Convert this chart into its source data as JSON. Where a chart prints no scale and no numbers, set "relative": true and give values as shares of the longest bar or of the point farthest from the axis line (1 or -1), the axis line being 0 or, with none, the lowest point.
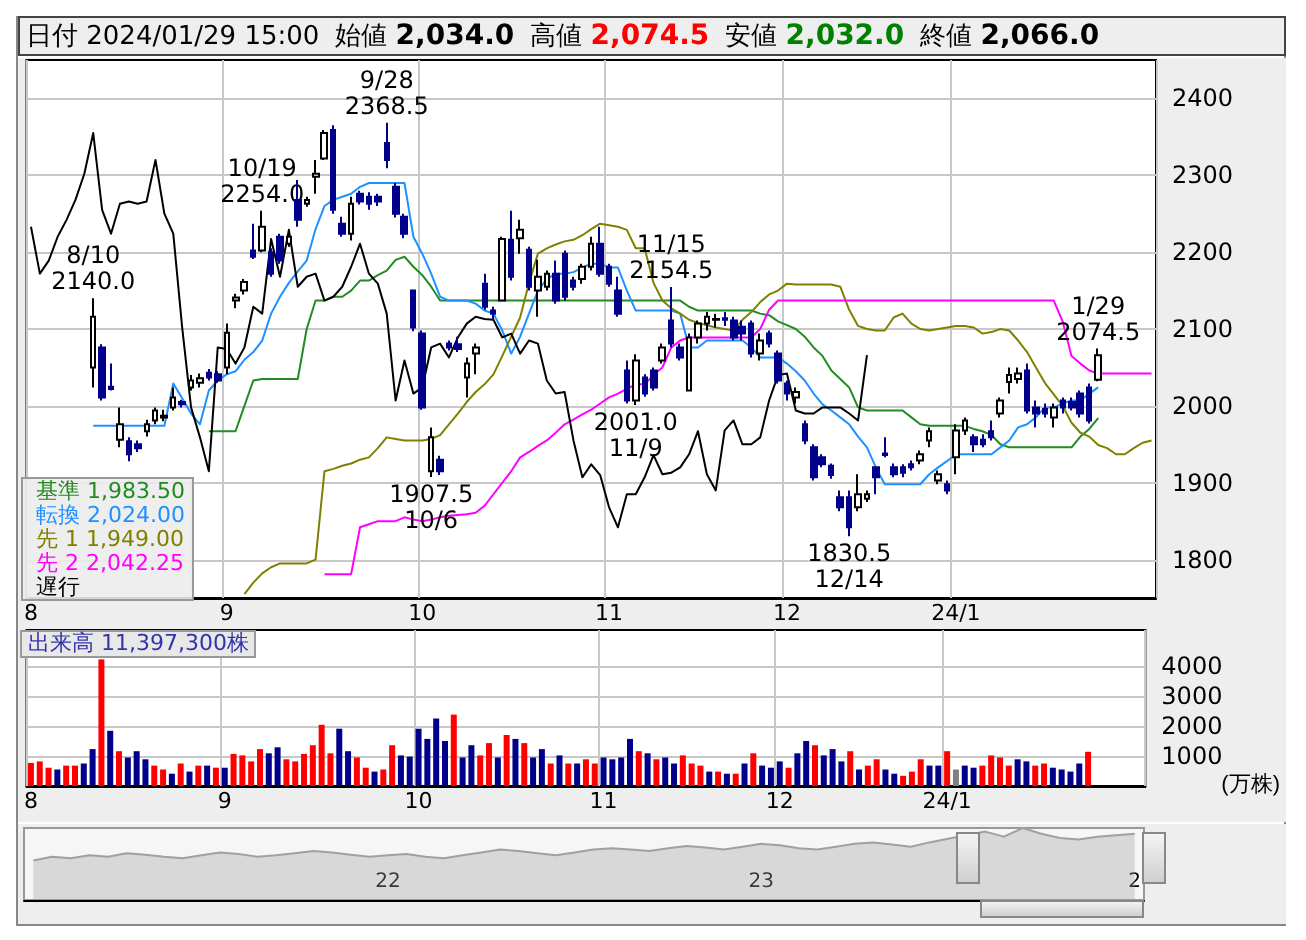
{
  "chart_data": [
    {
      "type": "candlestick",
      "title": "日付 2024/01/29 15:00",
      "annotations": [
        "始値 2,034.0",
        "高値 2,074.5",
        "安値 2,032.0",
        "終値 2,066.0",
        {
          "text": "8/10\n2140.0",
          "y": 2140
        },
        {
          "text": "9/28\n2368.5",
          "y": 2368.5
        },
        {
          "text": "1907.5\n10/6",
          "y": 1907.5
        },
        {
          "text": "10/19\n2254.0",
          "y": 2254
        },
        {
          "text": "2001.0\n11/9",
          "y": 2001
        },
        {
          "text": "11/15\n2154.5",
          "y": 2154.5
        },
        {
          "text": "1830.5\n12/14",
          "y": 1830.5
        },
        {
          "text": "1/29\n2074.5",
          "y": 2074.5
        }
      ],
      "categories": [
        "8",
        null,
        null,
        null,
        null,
        null,
        null,
        null,
        null,
        null,
        null,
        null,
        null,
        null,
        null,
        null,
        null,
        null,
        null,
        null,
        null,
        null,
        "9",
        null,
        null,
        null,
        null,
        null,
        null,
        null,
        null,
        null,
        null,
        null,
        null,
        null,
        null,
        null,
        null,
        null,
        null,
        null,
        null,
        null,
        "10",
        null,
        null,
        null,
        null,
        null,
        null,
        null,
        null,
        null,
        null,
        null,
        null,
        null,
        null,
        null,
        null,
        null,
        null,
        null,
        null,
        "11",
        null,
        null,
        null,
        null,
        null,
        null,
        null,
        null,
        null,
        null,
        null,
        null,
        null,
        null,
        null,
        null,
        null,
        null,
        null,
        "12",
        null,
        null,
        null,
        null,
        null,
        null,
        null,
        null,
        null,
        null,
        null,
        null,
        null,
        null,
        null,
        null,
        null,
        null,
        "24/1",
        null,
        null,
        null,
        null,
        null,
        null,
        null,
        null,
        null,
        null,
        null,
        null,
        null,
        null,
        null,
        null,
        null,
        null,
        null,
        null,
        null,
        null
      ],
      "ohlc": [
        null,
        null,
        null,
        null,
        null,
        null,
        null,
        [
          2050,
          2140,
          2024,
          2116
        ],
        [
          2076,
          2080,
          2007,
          2011
        ],
        [
          2025,
          2055,
          2020,
          2022
        ],
        [
          1956,
          1998,
          1946,
          1976
        ],
        [
          1954,
          1959,
          1928,
          1937
        ],
        [
          1950,
          1955,
          1940,
          1945
        ],
        [
          1967,
          1982,
          1960,
          1976
        ],
        [
          1981,
          1998,
          1976,
          1994
        ],
        [
          1985,
          1995,
          1980,
          1987
        ],
        [
          1998,
          2024,
          1994,
          2011
        ],
        [
          2005,
          2008,
          1998,
          2002
        ],
        [
          2024,
          2040,
          2020,
          2033
        ],
        [
          2030,
          2042,
          2024,
          2036
        ],
        [
          2043,
          2048,
          2033,
          2037
        ],
        [
          2041,
          2045,
          2030,
          2033
        ],
        [
          2050,
          2107,
          2041,
          2095
        ],
        [
          2137,
          2146,
          2127,
          2141
        ],
        [
          2150,
          2165,
          2145,
          2161
        ],
        [
          2202,
          2237,
          2191,
          2194
        ],
        [
          2202,
          2254,
          2200,
          2233
        ],
        [
          2200,
          2205,
          2168,
          2172
        ],
        [
          2220,
          2224,
          2185,
          2189
        ],
        [
          2211,
          2229,
          2207,
          2220
        ],
        [
          2268,
          2294,
          2233,
          2242
        ],
        [
          2263,
          2272,
          2259,
          2268
        ],
        [
          2298,
          2320,
          2276,
          2302
        ],
        [
          2322,
          2359,
          2320,
          2355
        ],
        [
          2359,
          2365,
          2250,
          2255
        ],
        [
          2237,
          2246,
          2220,
          2224
        ],
        [
          2224,
          2272,
          2215,
          2263
        ],
        [
          2276,
          2280,
          2262,
          2266
        ],
        [
          2272,
          2278,
          2255,
          2263
        ],
        [
          2272,
          2276,
          2260,
          2266
        ],
        [
          2342,
          2368.5,
          2309,
          2320
        ],
        [
          2285,
          2290,
          2245,
          2250
        ],
        [
          2246,
          2250,
          2218,
          2224
        ],
        [
          2150,
          2150,
          2097,
          2102
        ],
        [
          2094,
          2098,
          1995,
          1998
        ],
        [
          1915,
          1972,
          1907.5,
          1959
        ],
        [
          1930,
          1935,
          1910,
          1915
        ],
        [
          2081,
          2085,
          2072,
          2076
        ],
        [
          2080,
          2090,
          2070,
          2074
        ],
        [
          2037,
          2063,
          2011,
          2055
        ],
        [
          2068,
          2081,
          2041,
          2076
        ],
        [
          2159,
          2172,
          2125,
          2129
        ],
        [
          2124,
          2129,
          2111,
          2120
        ],
        [
          2137,
          2220,
          2137,
          2217
        ],
        [
          2216,
          2254,
          2163,
          2168
        ],
        [
          2218,
          2242,
          2198,
          2229
        ],
        [
          2203,
          2207,
          2150,
          2155
        ],
        [
          2150,
          2190,
          2116,
          2168
        ],
        [
          2155,
          2176,
          2150,
          2172
        ],
        [
          2172,
          2189,
          2133,
          2137
        ],
        [
          2198,
          2202,
          2137,
          2142
        ],
        [
          2163,
          2168,
          2150,
          2155
        ],
        [
          2165,
          2185,
          2159,
          2181
        ],
        [
          2181,
          2220,
          2176,
          2211
        ],
        [
          2211,
          2233,
          2168,
          2172
        ],
        [
          2181,
          2185,
          2155,
          2159
        ],
        [
          2150,
          2168,
          2116,
          2120
        ],
        [
          2046,
          2059,
          2003,
          2007
        ],
        [
          2007,
          2067,
          2001,
          2059
        ],
        [
          2037,
          2041,
          2012,
          2016
        ],
        [
          2046,
          2050,
          2020,
          2024
        ],
        [
          2059,
          2081,
          2055,
          2076
        ],
        [
          2111,
          2154.5,
          2076,
          2081
        ],
        [
          2076,
          2081,
          2059,
          2063
        ],
        [
          2020,
          2094,
          2020,
          2089
        ],
        [
          2089,
          2111,
          2081,
          2107
        ],
        [
          2107,
          2122,
          2098,
          2116
        ],
        [
          2112,
          2120,
          2102,
          2113
        ],
        [
          2114,
          2122,
          2104,
          2112
        ],
        [
          2111,
          2116,
          2085,
          2089
        ],
        [
          2103,
          2111,
          2085,
          2094
        ],
        [
          2107,
          2111,
          2063,
          2068
        ],
        [
          2068,
          2094,
          2059,
          2085
        ],
        [
          2094,
          2098,
          2076,
          2081
        ],
        [
          2068,
          2072,
          2029,
          2033
        ],
        [
          2029,
          2033,
          2007,
          2016
        ],
        [
          2011,
          2024,
          2003,
          2018
        ],
        [
          1976,
          1981,
          1950,
          1955
        ],
        [
          1946,
          1950,
          1903,
          1907
        ],
        [
          1933,
          1937,
          1920,
          1924
        ],
        [
          1922,
          1925,
          1905,
          1910
        ],
        [
          1881,
          1890,
          1863,
          1868
        ],
        [
          1881,
          1890,
          1830.5,
          1842
        ],
        [
          1868,
          1911,
          1863,
          1885
        ],
        [
          1879,
          1890,
          1875,
          1885
        ],
        [
          1920,
          1920,
          1885,
          1907
        ],
        [
          1938,
          1959,
          1933,
          1936
        ],
        [
          1920,
          1925,
          1907,
          1911
        ],
        [
          1920,
          1924,
          1907,
          1913
        ],
        [
          1924,
          1929,
          1916,
          1920
        ],
        [
          1929,
          1942,
          1924,
          1937
        ],
        [
          1955,
          1972,
          1946,
          1967
        ],
        [
          1903,
          1916,
          1898,
          1911
        ],
        [
          1898,
          1903,
          1885,
          1890
        ],
        [
          1933,
          1976,
          1911,
          1968
        ],
        [
          1968,
          1985,
          1962,
          1981
        ],
        [
          1959,
          1963,
          1940,
          1950
        ],
        [
          1956,
          1963,
          1946,
          1950
        ],
        [
          1967,
          1981,
          1955,
          1959
        ],
        [
          1990,
          2011,
          1985,
          2007
        ],
        [
          2031,
          2050,
          2016,
          2040
        ],
        [
          2035,
          2050,
          2029,
          2042
        ],
        [
          2046,
          2055,
          1990,
          1994
        ],
        [
          1998,
          2007,
          1972,
          1990
        ],
        [
          1996,
          2003,
          1985,
          1990
        ],
        [
          1985,
          2003,
          1972,
          1998
        ],
        [
          2007,
          2011,
          1990,
          1998
        ],
        [
          2005,
          2011,
          1994,
          1998
        ],
        [
          2016,
          2020,
          1985,
          1990
        ],
        [
          2024,
          2029,
          1977,
          1981
        ],
        [
          2034,
          2074.5,
          2032,
          2066
        ],
        null,
        null,
        null,
        null,
        null,
        null
      ],
      "series": [
        {
          "type": "line",
          "name": "基準 1,983.50",
          "color": "#228b22",
          "values": [
            null,
            null,
            null,
            null,
            null,
            null,
            null,
            null,
            null,
            null,
            null,
            null,
            null,
            null,
            null,
            null,
            null,
            null,
            null,
            null,
            1967,
            1967,
            1967,
            1967,
            2000,
            2033,
            2035,
            2035,
            2035,
            2035,
            2035,
            2100,
            2137,
            2137,
            2142,
            2142,
            2150,
            2163,
            2163,
            2170,
            2176,
            2190,
            2194,
            2181,
            2170,
            2155,
            2137,
            2137,
            2137,
            2137,
            2137,
            2137,
            2137,
            2137,
            2137,
            2137,
            2137,
            2137,
            2137,
            2137,
            2137,
            2137,
            2137,
            2137,
            2137,
            2137,
            2137,
            2137,
            2137,
            2137,
            2137,
            2137,
            2137,
            2137,
            2129,
            2124,
            2124,
            2124,
            2124,
            2124,
            2124,
            2124,
            2120,
            2118,
            2110,
            2105,
            2100,
            2090,
            2076,
            2065,
            2046,
            2035,
            2024,
            1998,
            1994,
            1994,
            1994,
            1994,
            1994,
            1985,
            1976,
            1974,
            1974,
            1974,
            1974,
            1974,
            1970,
            1967,
            1962,
            1950,
            1946,
            1946,
            1946,
            1946,
            1946,
            1946,
            1946,
            1946,
            1960,
            1970,
            1984,
            null,
            null,
            null,
            null,
            null,
            null
          ]
        },
        {
          "type": "line",
          "name": "転換 2,024.00",
          "color": "#1e90ff",
          "values": [
            null,
            null,
            null,
            null,
            null,
            null,
            null,
            1974,
            1974,
            1974,
            1974,
            1974,
            1974,
            1974,
            1974,
            1974,
            2029,
            2010,
            1990,
            1976,
            2020,
            2033,
            2041,
            2045,
            2060,
            2070,
            2085,
            2120,
            2142,
            2160,
            2175,
            2189,
            2230,
            2260,
            2268,
            2272,
            2276,
            2285,
            2290,
            2290,
            2290,
            2290,
            2290,
            2220,
            2198,
            2172,
            2142,
            2137,
            2137,
            2137,
            2133,
            2124,
            2120,
            2098,
            2068,
            2090,
            2120,
            2150,
            2165,
            2172,
            2172,
            2174,
            2180,
            2185,
            2185,
            2180,
            2180,
            2150,
            2124,
            2124,
            2124,
            2124,
            2124,
            2120,
            2076,
            2076,
            2085,
            2085,
            2085,
            2085,
            2085,
            2076,
            2063,
            2063,
            2063,
            2055,
            2045,
            2033,
            2016,
            2002,
            1994,
            1985,
            1976,
            1960,
            1946,
            1920,
            1898,
            1898,
            1898,
            1898,
            1898,
            1911,
            1920,
            1928,
            1937,
            1937,
            1937,
            1937,
            1937,
            1946,
            1955,
            1972,
            1976,
            1985,
            1998,
            1998,
            2003,
            2007,
            2007,
            2016,
            2024,
            null,
            null,
            null,
            null,
            null,
            null
          ]
        },
        {
          "type": "line",
          "name": "先 1 1,949.00",
          "color": "#808000",
          "values": [
            null,
            null,
            null,
            null,
            null,
            null,
            null,
            null,
            null,
            null,
            null,
            null,
            null,
            null,
            null,
            null,
            null,
            null,
            null,
            null,
            null,
            null,
            null,
            null,
            1755,
            1770,
            1782,
            1790,
            1795,
            1795,
            1795,
            1795,
            1800,
            1915,
            1918,
            1922,
            1925,
            1930,
            1933,
            1945,
            1959,
            1957,
            1955,
            1955,
            1955,
            1957,
            1962,
            1976,
            1990,
            2005,
            2018,
            2028,
            2041,
            2065,
            2090,
            2115,
            2160,
            2198,
            2205,
            2210,
            2214,
            2216,
            2222,
            2230,
            2237,
            2235,
            2233,
            2229,
            2205,
            2205,
            2160,
            2137,
            2127,
            2120,
            2112,
            2108,
            2105,
            2102,
            2100,
            2098,
            2112,
            2122,
            2135,
            2145,
            2150,
            2159,
            2158,
            2158,
            2158,
            2158,
            2158,
            2155,
            2125,
            2104,
            2100,
            2098,
            2098,
            2115,
            2120,
            2107,
            2100,
            2098,
            2100,
            2102,
            2104,
            2104,
            2102,
            2094,
            2096,
            2100,
            2098,
            2085,
            2070,
            2050,
            2030,
            2015,
            2000,
            1978,
            1965,
            1960,
            1949,
            1945,
            1937,
            1937,
            1945,
            1952,
            1955
          ]
        },
        {
          "type": "line",
          "name": "先 2 2,042.25",
          "color": "#ff00ff",
          "values": [
            null,
            null,
            null,
            null,
            null,
            null,
            null,
            null,
            null,
            null,
            null,
            null,
            null,
            null,
            null,
            null,
            null,
            null,
            null,
            null,
            null,
            null,
            null,
            null,
            null,
            null,
            null,
            null,
            null,
            null,
            null,
            null,
            null,
            1781,
            1781,
            1781,
            1781,
            1842,
            1846,
            1850,
            1850,
            1850,
            1855,
            1852,
            1850,
            1852,
            1855,
            1857,
            1858,
            1859,
            1861,
            1870,
            1885,
            1900,
            1915,
            1933,
            1940,
            1948,
            1955,
            1965,
            1976,
            1982,
            1989,
            1995,
            2003,
            2011,
            2016,
            2022,
            2028,
            2028,
            2040,
            2050,
            2076,
            2085,
            2089,
            2089,
            2089,
            2089,
            2089,
            2089,
            2089,
            2089,
            2100,
            2125,
            2137,
            2137,
            2137,
            2137,
            2137,
            2137,
            2137,
            2137,
            2137,
            2137,
            2137,
            2137,
            2137,
            2137,
            2137,
            2137,
            2137,
            2137,
            2137,
            2137,
            2137,
            2137,
            2137,
            2137,
            2137,
            2137,
            2137,
            2137,
            2137,
            2137,
            2137,
            2137,
            2110,
            2065,
            2055,
            2046,
            2042,
            2042,
            2042,
            2042,
            2042,
            2042,
            2042
          ]
        },
        {
          "type": "line",
          "name": "遅行",
          "color": "#000000",
          "values": [
            2233,
            2172,
            2189,
            2220,
            2242,
            2268,
            2302,
            2355,
            2255,
            2224,
            2263,
            2266,
            2263,
            2266,
            2320,
            2250,
            2224,
            2102,
            1998,
            1959,
            1915,
            2076,
            2074,
            2055,
            2076,
            2129,
            2120,
            2217,
            2168,
            2229,
            2155,
            2168,
            2172,
            2137,
            2142,
            2155,
            2181,
            2211,
            2172,
            2159,
            2120,
            2007,
            2059,
            2016,
            2024,
            2076,
            2081,
            2063,
            2089,
            2107,
            2116,
            2113,
            2112,
            2089,
            2094,
            2068,
            2085,
            2081,
            2033,
            2016,
            2018,
            1955,
            1907,
            1924,
            1910,
            1868,
            1842,
            1885,
            1885,
            1907,
            1936,
            1911,
            1913,
            1920,
            1937,
            1967,
            1911,
            1890,
            1968,
            1981,
            1950,
            1950,
            1959,
            2007,
            2040,
            2042,
            1994,
            1990,
            1990,
            1998,
            1998,
            1998,
            1990,
            1981,
            2066,
            null,
            null,
            null,
            null,
            null,
            null,
            null,
            null,
            null,
            null,
            null,
            null,
            null,
            null,
            null,
            null,
            null,
            null,
            null,
            null,
            null,
            null,
            null,
            null,
            null,
            null,
            null,
            null,
            null,
            null,
            null,
            null
          ]
        }
      ],
      "ylim": [
        1750,
        2450
      ],
      "yticks": [
        1800,
        1900,
        2000,
        2100,
        2200,
        2300,
        2400
      ],
      "grid": true,
      "legend": "bottom left"
    },
    {
      "type": "bar",
      "annotations": [
        "出来高 11,397,300株"
      ],
      "ylabel": "(万株)",
      "categories": [
        "8",
        null,
        null,
        null,
        null,
        null,
        null,
        null,
        null,
        null,
        null,
        null,
        null,
        null,
        null,
        null,
        null,
        null,
        null,
        null,
        null,
        null,
        "9",
        null,
        null,
        null,
        null,
        null,
        null,
        null,
        null,
        null,
        null,
        null,
        null,
        null,
        null,
        null,
        null,
        null,
        null,
        null,
        null,
        null,
        "10",
        null,
        null,
        null,
        null,
        null,
        null,
        null,
        null,
        null,
        null,
        null,
        null,
        null,
        null,
        null,
        null,
        null,
        null,
        null,
        null,
        "11",
        null,
        null,
        null,
        null,
        null,
        null,
        null,
        null,
        null,
        null,
        null,
        null,
        null,
        null,
        null,
        null,
        null,
        null,
        null,
        "12",
        null,
        null,
        null,
        null,
        null,
        null,
        null,
        null,
        null,
        null,
        null,
        null,
        null,
        null,
        null,
        null,
        null,
        null,
        "24/1",
        null,
        null,
        null,
        null,
        null,
        null,
        null,
        null,
        null,
        null,
        null,
        null,
        null,
        null,
        null,
        null,
        null,
        null,
        null,
        null,
        null,
        null
      ],
      "values": [
        770,
        820,
        610,
        550,
        680,
        680,
        750,
        1230,
        4220,
        1840,
        1160,
        950,
        1160,
        890,
        680,
        550,
        410,
        750,
        480,
        680,
        680,
        610,
        610,
        1070,
        1020,
        820,
        1230,
        1090,
        1290,
        890,
        820,
        1070,
        1360,
        2040,
        1090,
        1910,
        1160,
        950,
        610,
        480,
        550,
        1360,
        1020,
        980,
        1910,
        1570,
        2250,
        1500,
        2380,
        950,
        1360,
        1020,
        1430,
        950,
        1700,
        1570,
        1430,
        950,
        1230,
        750,
        1020,
        750,
        750,
        890,
        750,
        950,
        890,
        950,
        1570,
        1160,
        1090,
        890,
        950,
        750,
        1020,
        750,
        680,
        480,
        480,
        410,
        410,
        750,
        1090,
        680,
        610,
        820,
        610,
        1090,
        1500,
        1360,
        1020,
        1230,
        820,
        1160,
        550,
        680,
        890,
        550,
        410,
        340,
        480,
        890,
        680,
        680,
        1160,
        550,
        680,
        610,
        680,
        1020,
        950,
        680,
        890,
        820,
        680,
        750,
        610,
        550,
        480,
        750,
        1140,
        null,
        null,
        null,
        null,
        null,
        null
      ],
      "colors": [
        "#ff0000",
        "#ff0000",
        "#ff0000",
        "#00008b",
        "#ff0000",
        "#ff0000",
        "#00008b",
        "#00008b",
        "#ff0000",
        "#00008b",
        "#ff0000",
        "#00008b",
        "#00008b",
        "#00008b",
        "#ff0000",
        "#ff0000",
        "#00008b",
        "#ff0000",
        "#00008b",
        "#ff0000",
        "#00008b",
        "#ff0000",
        "#00008b",
        "#ff0000",
        "#ff0000",
        "#ff0000",
        "#ff0000",
        "#00008b",
        "#00008b",
        "#ff0000",
        "#ff0000",
        "#ff0000",
        "#ff0000",
        "#ff0000",
        "#ff0000",
        "#00008b",
        "#00008b",
        "#ff0000",
        "#ff0000",
        "#00008b",
        "#ff0000",
        "#ff0000",
        "#00008b",
        "#00008b",
        "#00008b",
        "#00008b",
        "#00008b",
        "#00008b",
        "#ff0000",
        "#00008b",
        "#00008b",
        "#ff0000",
        "#ff0000",
        "#00008b",
        "#ff0000",
        "#00008b",
        "#ff0000",
        "#00008b",
        "#00008b",
        "#ff0000",
        "#00008b",
        "#ff0000",
        "#00008b",
        "#ff0000",
        "#ff0000",
        "#00008b",
        "#00008b",
        "#00008b",
        "#00008b",
        "#ff0000",
        "#00008b",
        "#ff0000",
        "#00008b",
        "#00008b",
        "#ff0000",
        "#ff0000",
        "#ff0000",
        "#00008b",
        "#ff0000",
        "#00008b",
        "#ff0000",
        "#00008b",
        "#ff0000",
        "#00008b",
        "#00008b",
        "#00008b",
        "#ff0000",
        "#00008b",
        "#00008b",
        "#ff0000",
        "#00008b",
        "#00008b",
        "#00008b",
        "#ff0000",
        "#00008b",
        "#ff0000",
        "#ff0000",
        "#00008b",
        "#00008b",
        "#ff0000",
        "#ff0000",
        "#ff0000",
        "#00008b",
        "#00008b",
        "#ff0000",
        "#808080",
        "#00008b",
        "#00008b",
        "#ff0000",
        "#ff0000",
        "#ff0000",
        "#ff0000",
        "#00008b",
        "#00008b",
        "#ff0000",
        "#ff0000",
        "#00008b",
        "#00008b",
        "#00008b",
        "#00008b",
        "#ff0000",
        null,
        null,
        null,
        null,
        null,
        null
      ],
      "ylim": [
        0,
        5200
      ],
      "yticks": [
        1000,
        2000,
        3000,
        4000
      ],
      "grid": true
    },
    {
      "type": "area",
      "relative": true,
      "color": "#a0a0a0",
      "categories": [
        null,
        null,
        null,
        null,
        null,
        null,
        null,
        null,
        null,
        null,
        null,
        null,
        null,
        null,
        null,
        null,
        null,
        null,
        null,
        "22",
        null,
        null,
        null,
        null,
        null,
        null,
        null,
        null,
        null,
        null,
        null,
        null,
        null,
        null,
        null,
        null,
        null,
        null,
        null,
        "23",
        null,
        null,
        null,
        null,
        null,
        null,
        null,
        null,
        null,
        null,
        null,
        null,
        null,
        null,
        null,
        null,
        null,
        null,
        null,
        "2"
      ],
      "values": [
        0.55,
        0.6,
        0.58,
        0.62,
        0.6,
        0.65,
        0.63,
        0.6,
        0.58,
        0.62,
        0.66,
        0.64,
        0.6,
        0.62,
        0.65,
        0.68,
        0.66,
        0.63,
        0.6,
        0.62,
        0.64,
        0.6,
        0.58,
        0.62,
        0.66,
        0.7,
        0.68,
        0.65,
        0.62,
        0.66,
        0.7,
        0.72,
        0.7,
        0.68,
        0.72,
        0.75,
        0.73,
        0.7,
        0.74,
        0.78,
        0.76,
        0.72,
        0.7,
        0.74,
        0.78,
        0.8,
        0.77,
        0.74,
        0.8,
        0.85,
        0.9,
        0.95,
        0.88,
        1.0,
        0.92,
        0.86,
        0.84,
        0.88,
        0.9,
        0.92
      ]
    }
  ]
}
